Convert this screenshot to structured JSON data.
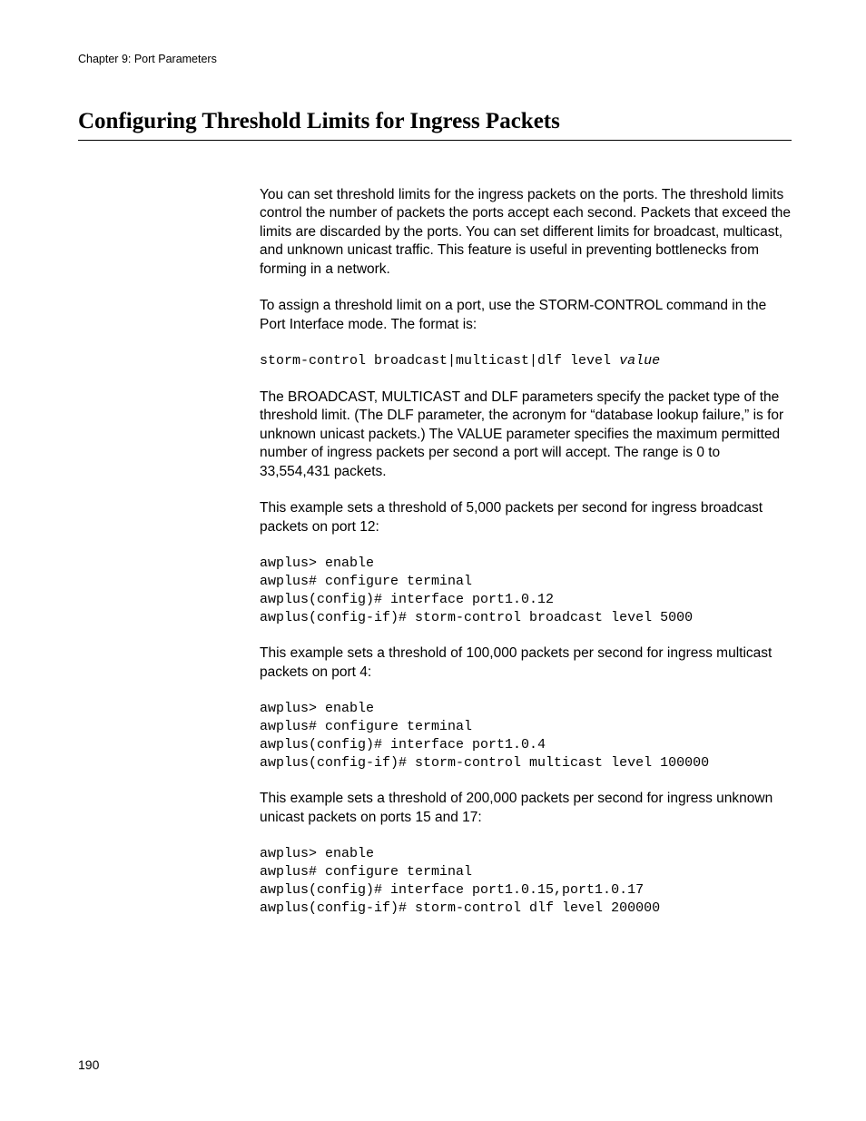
{
  "chapter_header": "Chapter 9: Port Parameters",
  "section_title": "Configuring Threshold Limits for Ingress Packets",
  "para1": "You can set threshold limits for the ingress packets on the ports. The threshold limits control the number of packets the ports accept each second. Packets that exceed the limits are discarded by the ports. You can set different limits for broadcast, multicast, and unknown unicast traffic. This feature is useful in preventing bottlenecks from forming in a network.",
  "para2": "To assign a threshold limit on a port, use the STORM-CONTROL command in the Port Interface mode. The format is:",
  "syntax_prefix": "storm-control broadcast|multicast|dlf level ",
  "syntax_value": "value",
  "para3": "The BROADCAST, MULTICAST and DLF parameters specify the packet type of the threshold limit. (The DLF parameter, the acronym for “database lookup failure,” is for unknown unicast packets.) The VALUE parameter specifies the maximum permitted number of ingress packets per second a port will accept. The range is 0 to 33,554,431 packets.",
  "para4": "This example sets a threshold of 5,000 packets per second for ingress broadcast packets on port 12:",
  "code1": "awplus> enable\nawplus# configure terminal\nawplus(config)# interface port1.0.12\nawplus(config-if)# storm-control broadcast level 5000",
  "para5": "This example sets a threshold of 100,000 packets per second for ingress multicast packets on port 4:",
  "code2": "awplus> enable\nawplus# configure terminal\nawplus(config)# interface port1.0.4\nawplus(config-if)# storm-control multicast level 100000",
  "para6": "This example sets a threshold of 200,000 packets per second for ingress unknown unicast packets on ports 15 and 17:",
  "code3": "awplus> enable\nawplus# configure terminal\nawplus(config)# interface port1.0.15,port1.0.17\nawplus(config-if)# storm-control dlf level 200000",
  "page_number": "190"
}
